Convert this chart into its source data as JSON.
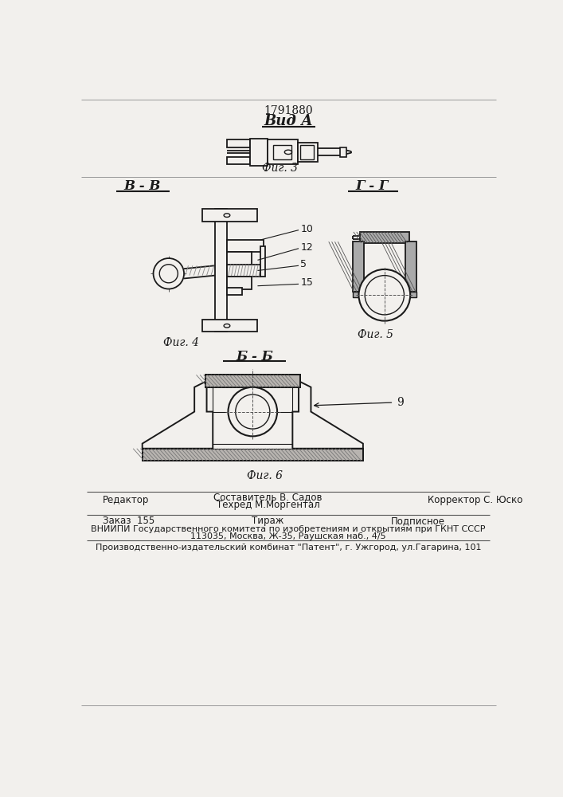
{
  "patent_number": "1791880",
  "view_label": "Вид А",
  "fig3_label": "Фиг. 3",
  "fig4_label": "Фиг. 4",
  "fig5_label": "Фиг. 5",
  "fig6_label": "Фиг. 6",
  "section_bb": "В - В",
  "section_gg": "Г - Г",
  "section_bb2": "Б - Б",
  "label_10": "10",
  "label_12": "12",
  "label_5": "5",
  "label_15": "15",
  "label_9": "9",
  "editor_label": "Редактор",
  "compiler_label": "Составитель В. Садов",
  "corrector_label": "Корректор С. Юско",
  "techred_label": "Техред М.Моргентал",
  "order_label": "Заказ  155",
  "tirazh_label": "Тираж",
  "podpisnoe_label": "Подписное",
  "vniiipi_line1": "ВНИИПИ Государственного комитета по изобретениям и открытиям при ГКНТ СССР",
  "vniiipi_line2": "113035, Москва, Ж-35, Раушская наб., 4/5",
  "factory_line": "Производственно-издательский комбинат \"Патент\", г. Ужгород, ул.Гагарина, 101",
  "bg_color": "#f2f0ed",
  "line_color": "#1a1a1a",
  "hatch_color": "#444444",
  "gray_fill": "#aaaaaa",
  "light_gray": "#cccccc"
}
